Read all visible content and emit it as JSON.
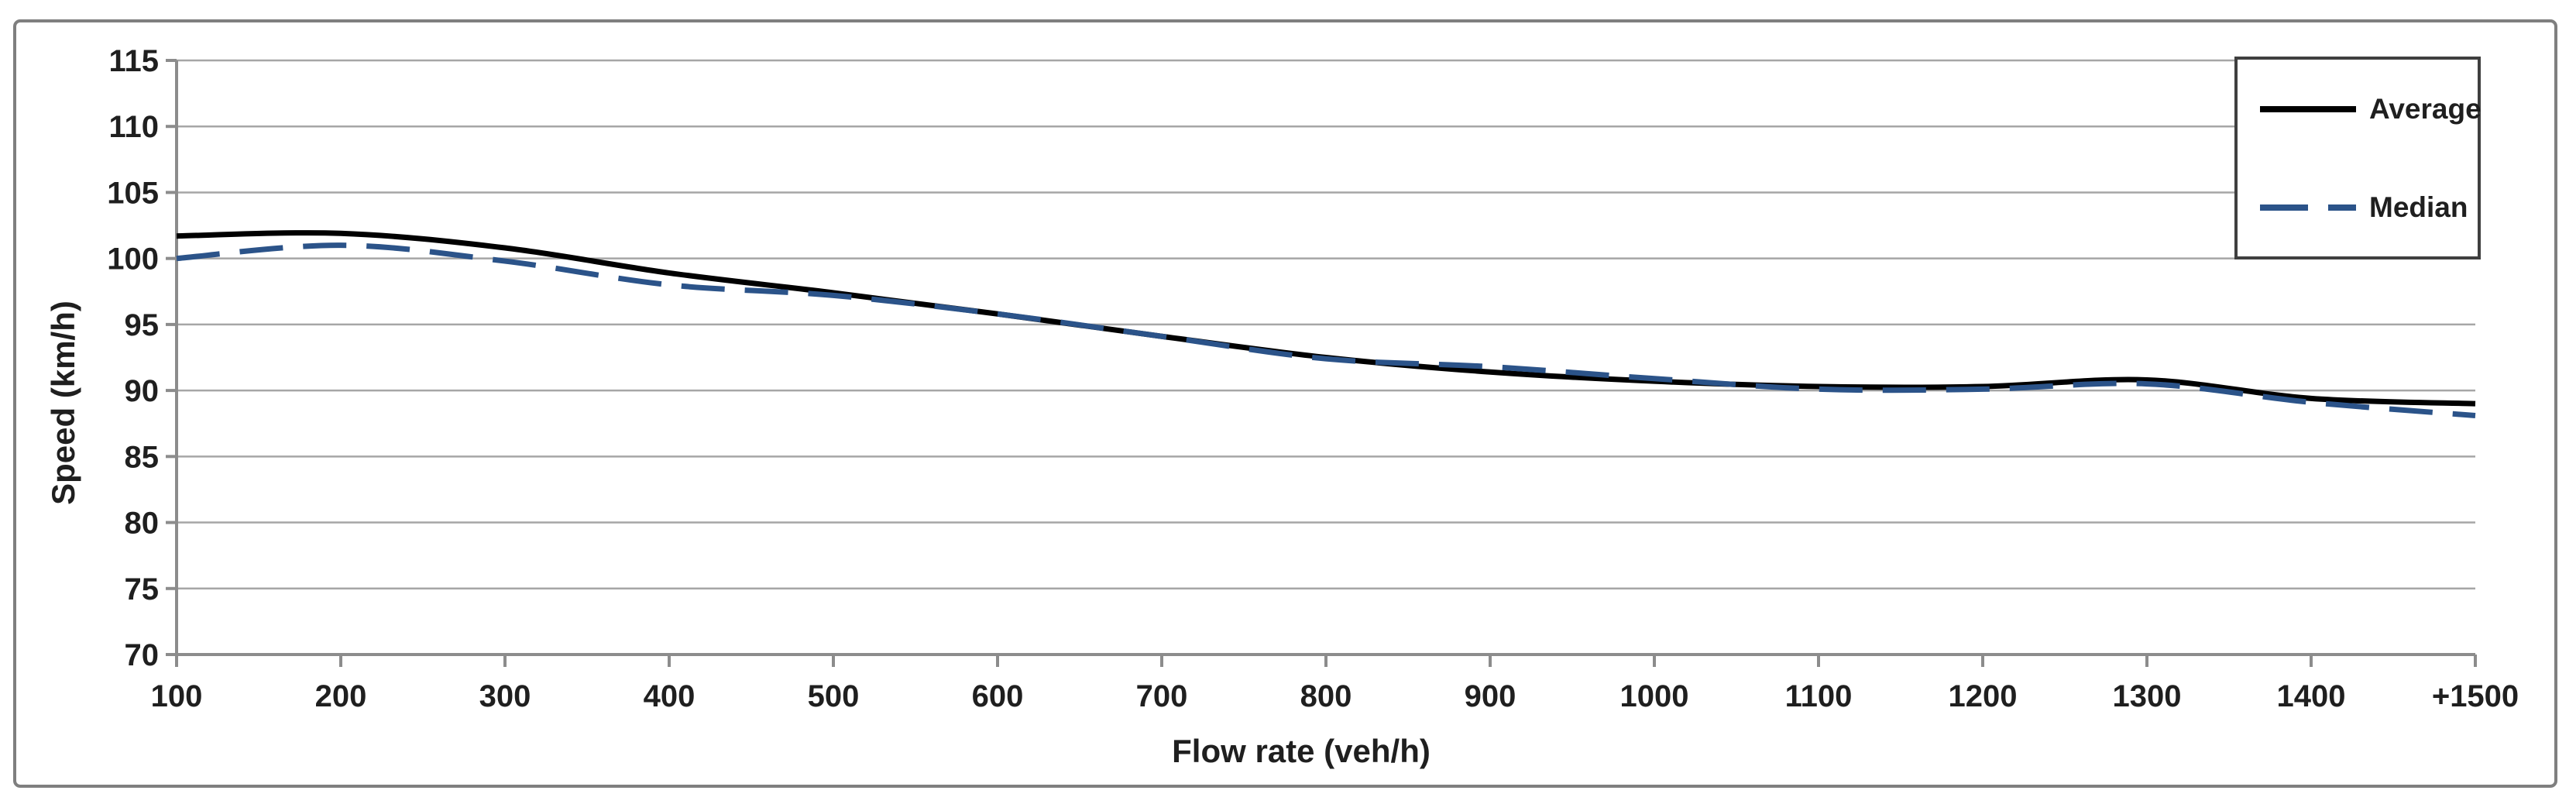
{
  "styles": {
    "grid_color": "#a6a6a6",
    "axis_color": "#8c8c8c",
    "frame_border_color": "#7f7f7f",
    "legend_border_color": "#3f3f3f",
    "text_color": "#1f1f1f",
    "background": "#ffffff",
    "average_color": "#000000",
    "median_color": "#2b5389"
  },
  "chart_data": {
    "type": "line",
    "title": "",
    "xlabel": "Flow rate (veh/h)",
    "ylabel": "Speed (km/h)",
    "x": [
      100,
      200,
      300,
      400,
      500,
      600,
      700,
      800,
      900,
      1000,
      1100,
      1200,
      1300,
      1400,
      1500
    ],
    "x_tick_labels": [
      "100",
      "200",
      "300",
      "400",
      "500",
      "600",
      "700",
      "800",
      "900",
      "1000",
      "1100",
      "1200",
      "1300",
      "1400",
      "+1500"
    ],
    "y_ticks": [
      70,
      75,
      80,
      85,
      90,
      95,
      100,
      105,
      110,
      115
    ],
    "xlim": [
      100,
      1500
    ],
    "ylim": [
      70,
      115
    ],
    "grid": "horizontal",
    "smooth": true,
    "legend_position": "top-right",
    "series": [
      {
        "name": "Average",
        "color": "#000000",
        "dash": "solid",
        "values": [
          101.7,
          101.9,
          100.8,
          98.9,
          97.4,
          95.8,
          94.1,
          92.5,
          91.4,
          90.7,
          90.3,
          90.3,
          90.8,
          89.4,
          89.0
        ]
      },
      {
        "name": "Median",
        "color": "#2b5389",
        "dash": "dashed",
        "values": [
          100.0,
          101.0,
          99.8,
          98.0,
          97.2,
          95.8,
          94.1,
          92.4,
          91.8,
          90.9,
          90.1,
          90.1,
          90.5,
          89.1,
          88.1
        ]
      }
    ]
  }
}
